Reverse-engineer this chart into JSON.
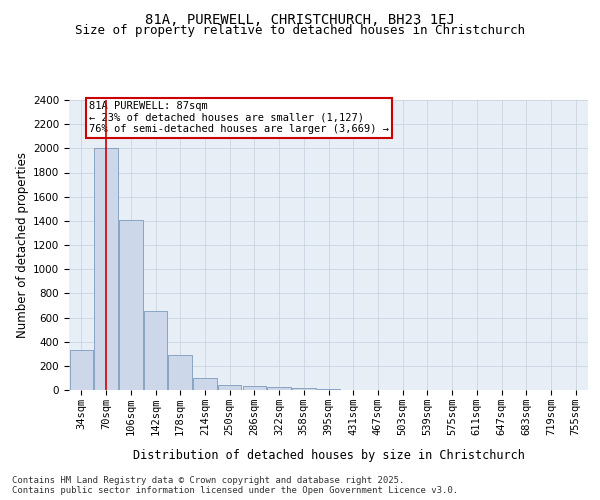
{
  "title_line1": "81A, PUREWELL, CHRISTCHURCH, BH23 1EJ",
  "title_line2": "Size of property relative to detached houses in Christchurch",
  "xlabel": "Distribution of detached houses by size in Christchurch",
  "ylabel": "Number of detached properties",
  "categories": [
    "34sqm",
    "70sqm",
    "106sqm",
    "142sqm",
    "178sqm",
    "214sqm",
    "250sqm",
    "286sqm",
    "322sqm",
    "358sqm",
    "395sqm",
    "431sqm",
    "467sqm",
    "503sqm",
    "539sqm",
    "575sqm",
    "611sqm",
    "647sqm",
    "683sqm",
    "719sqm",
    "755sqm"
  ],
  "values": [
    330,
    2000,
    1410,
    650,
    290,
    100,
    45,
    35,
    25,
    15,
    10,
    0,
    0,
    0,
    0,
    0,
    0,
    0,
    0,
    0,
    0
  ],
  "bar_color": "#ccd8ea",
  "bar_edge_color": "#6a8db0",
  "vline_x": 1.0,
  "vline_color": "#cc0000",
  "annotation_text": "81A PUREWELL: 87sqm\n← 23% of detached houses are smaller (1,127)\n76% of semi-detached houses are larger (3,669) →",
  "annotation_box_facecolor": "#ffffff",
  "annotation_box_edgecolor": "#cc0000",
  "ylim": [
    0,
    2400
  ],
  "yticks": [
    0,
    200,
    400,
    600,
    800,
    1000,
    1200,
    1400,
    1600,
    1800,
    2000,
    2200,
    2400
  ],
  "grid_color": "#c5d0df",
  "background_color": "#e8eef5",
  "footer_text": "Contains HM Land Registry data © Crown copyright and database right 2025.\nContains public sector information licensed under the Open Government Licence v3.0.",
  "title_fontsize": 10,
  "subtitle_fontsize": 9,
  "axis_label_fontsize": 8.5,
  "tick_fontsize": 7.5,
  "annotation_fontsize": 7.5,
  "footer_fontsize": 6.5
}
